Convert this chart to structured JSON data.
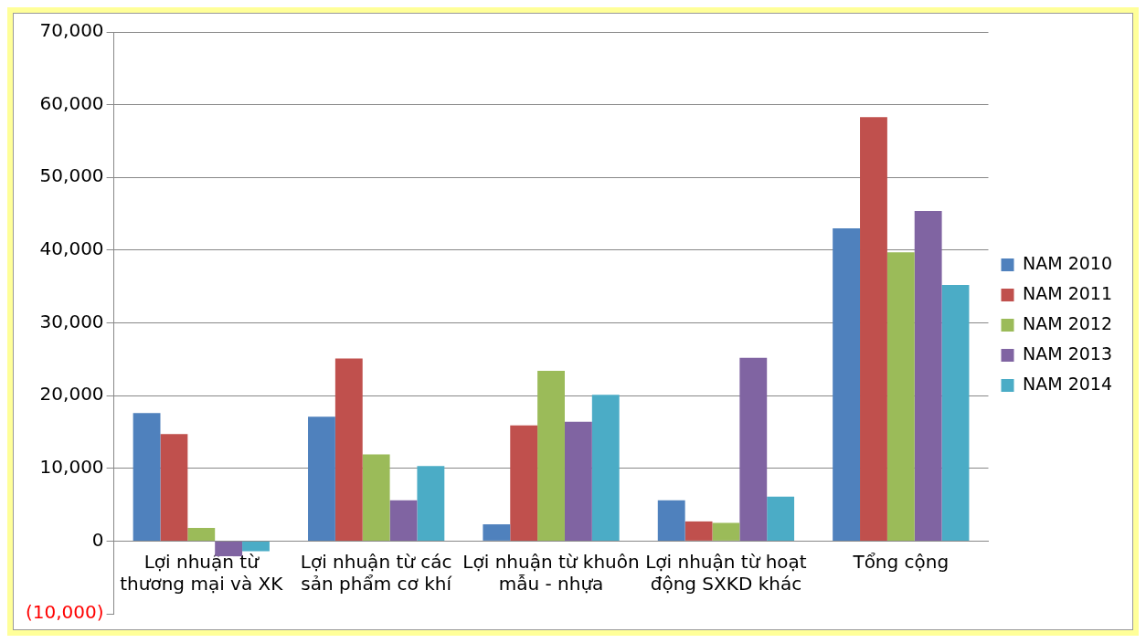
{
  "chart_data": {
    "type": "bar",
    "categories": [
      "Lợi nhuận từ thương mại và XK",
      "Lợi nhuận từ các sản phẩm cơ khí",
      "Lợi nhuận từ khuôn mẫu - nhựa",
      "Lợi nhuận từ hoạt động SXKD khác",
      "Tổng cộng"
    ],
    "series": [
      {
        "name": "NAM 2010",
        "color": "#4f81bd",
        "values": [
          17600,
          17100,
          2300,
          5600,
          43000
        ]
      },
      {
        "name": "NAM 2011",
        "color": "#c0504d",
        "values": [
          14700,
          25100,
          15900,
          2700,
          58300
        ]
      },
      {
        "name": "NAM 2012",
        "color": "#9bbb59",
        "values": [
          1800,
          11900,
          23400,
          2500,
          39700
        ]
      },
      {
        "name": "NAM 2013",
        "color": "#8064a2",
        "values": [
          -2100,
          5600,
          16400,
          25200,
          45400
        ]
      },
      {
        "name": "NAM 2014",
        "color": "#4bacc6",
        "values": [
          -1400,
          10300,
          20100,
          6100,
          35200
        ]
      }
    ],
    "ylim": [
      -10000,
      70000
    ],
    "yticks": [
      {
        "value": -10000,
        "label": "(10,000)"
      },
      {
        "value": 0,
        "label": "0"
      },
      {
        "value": 10000,
        "label": "10,000"
      },
      {
        "value": 20000,
        "label": "20,000"
      },
      {
        "value": 30000,
        "label": "30,000"
      },
      {
        "value": 40000,
        "label": "40,000"
      },
      {
        "value": 50000,
        "label": "50,000"
      },
      {
        "value": 60000,
        "label": "60,000"
      },
      {
        "value": 70000,
        "label": "70,000"
      }
    ],
    "grid": "y",
    "legend": "right"
  }
}
